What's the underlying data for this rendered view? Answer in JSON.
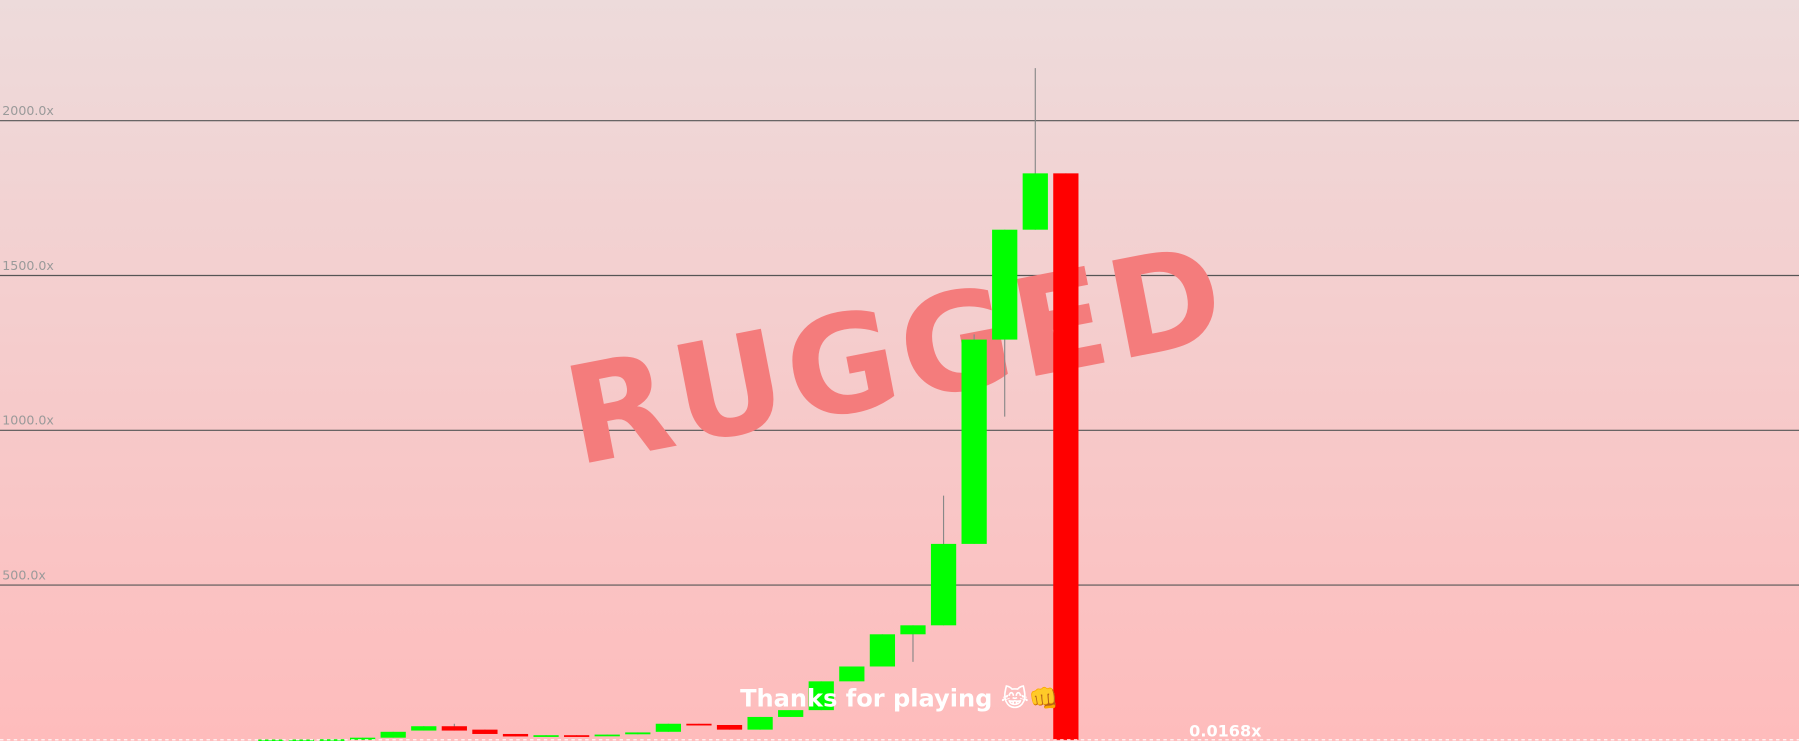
{
  "chart_data": {
    "type": "candlestick",
    "categories": [
      null,
      null,
      null,
      null,
      null,
      null,
      null,
      null,
      null,
      null,
      null,
      null,
      null,
      null,
      null,
      null,
      null,
      null,
      null,
      null,
      null,
      null,
      null,
      null,
      null,
      null,
      null
    ],
    "open": [
      0,
      0,
      1,
      0,
      7,
      30,
      44,
      33,
      19,
      14,
      15,
      14,
      18,
      26,
      52,
      48,
      33,
      74,
      96,
      189,
      237,
      341,
      370,
      633,
      1293,
      1648,
      1830
    ],
    "high": [
      1,
      1,
      2,
      7,
      26,
      44,
      52,
      33,
      19,
      15,
      15,
      17,
      24,
      52,
      52,
      48,
      74,
      96,
      189,
      237,
      341,
      370,
      789,
      1310,
      1648,
      2170,
      1830
    ],
    "low": [
      0,
      0,
      1,
      0,
      7,
      30,
      30,
      19,
      11,
      14,
      14,
      14,
      18,
      26,
      49,
      33,
      33,
      74,
      96,
      189,
      237,
      252,
      370,
      633,
      1044,
      1648,
      0
    ],
    "close": [
      1,
      1,
      2,
      7,
      26,
      44,
      30,
      19,
      11,
      15,
      14,
      17,
      24,
      52,
      49,
      33,
      74,
      96,
      189,
      237,
      341,
      370,
      633,
      1293,
      1648,
      1830,
      0
    ],
    "up_color": "#00ff00",
    "down_color": "#ff0000",
    "ylim": [
      0,
      2390
    ],
    "yticks": [
      {
        "value": 500,
        "label": "500.0x"
      },
      {
        "value": 1000,
        "label": "1000.0x"
      },
      {
        "value": 1500,
        "label": "1500.0x"
      },
      {
        "value": 2000,
        "label": "2000.0x"
      }
    ],
    "grid": true,
    "annotations": [
      "RUGGED",
      "Thanks for playing 😹👊",
      "0.0168x"
    ]
  }
}
